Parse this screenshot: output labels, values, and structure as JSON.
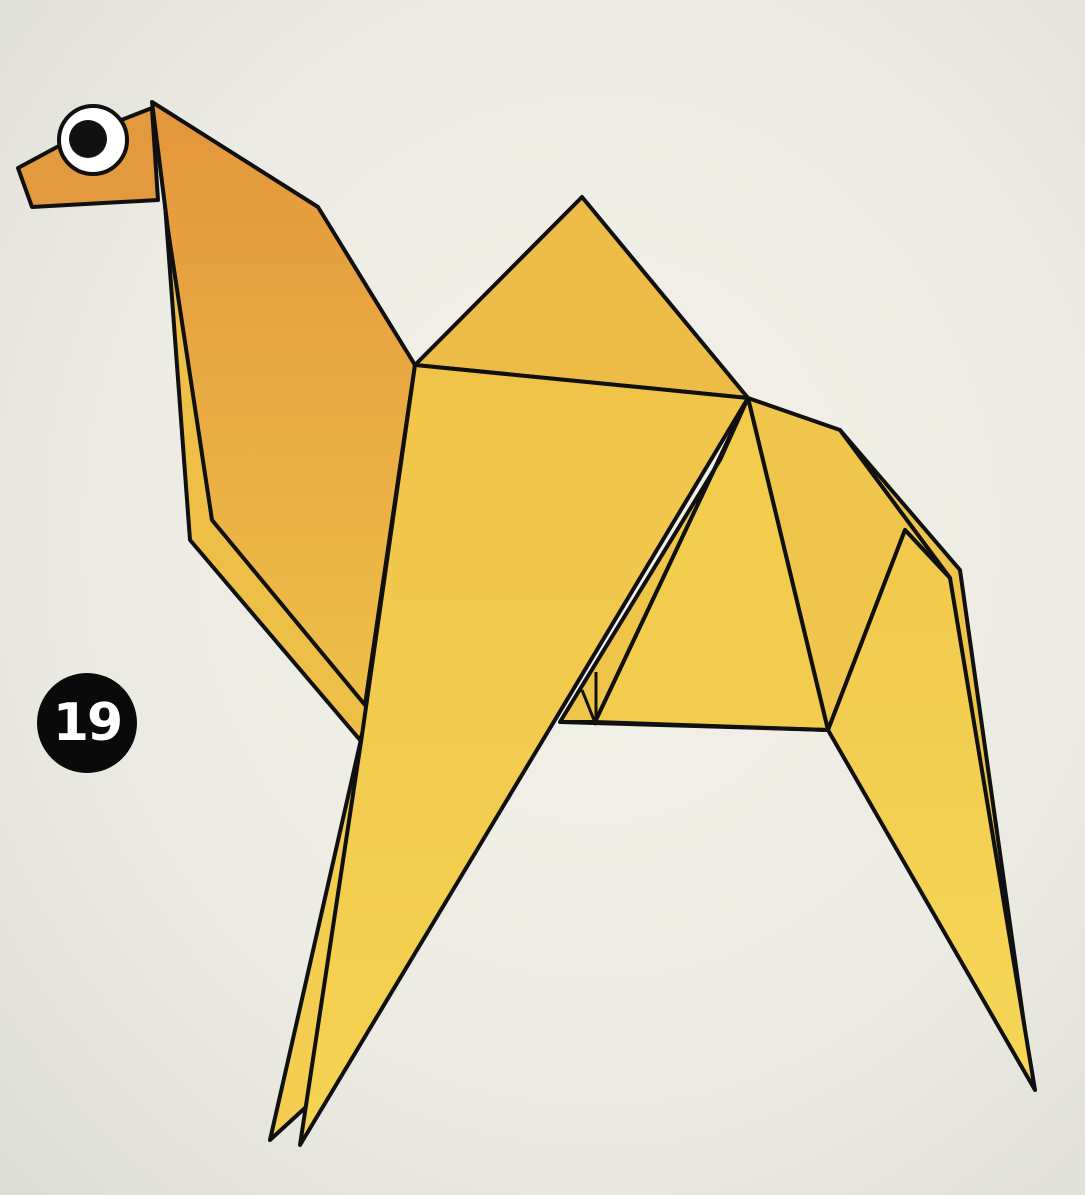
{
  "step": {
    "number": "19"
  },
  "figure": {
    "subject": "origami camel",
    "colors": {
      "outline": "#101010",
      "head": "#e39a3e",
      "neck_top": "#e3963c",
      "neck_bottom": "#ebbd45",
      "body_light": "#f3cf4e",
      "body_mid": "#eec34c",
      "hump": "#edbc47",
      "leg": "#f3cd4d",
      "eye_white": "#ffffff",
      "pupil": "#111111"
    },
    "icons": {
      "eye": "eye-icon",
      "badge": "step-number-badge"
    }
  }
}
